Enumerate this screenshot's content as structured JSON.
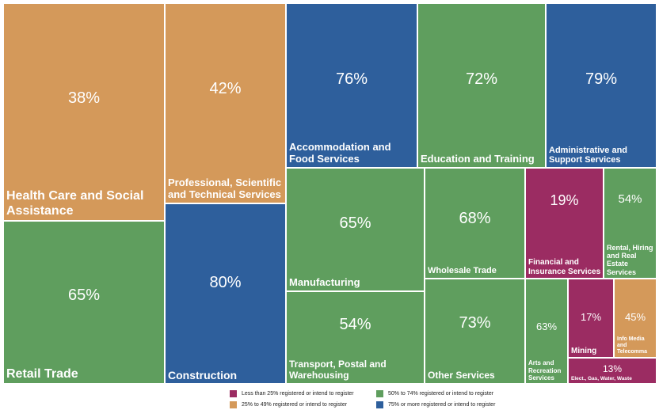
{
  "chart_data": {
    "type": "treemap",
    "categories": [
      "Health Care and Social Assistance",
      "Retail Trade",
      "Professional, Scientific and Technical Services",
      "Construction",
      "Accommodation and Food Services",
      "Education and Training",
      "Administrative and Support Services",
      "Manufacturing",
      "Transport, Postal and Warehousing",
      "Wholesale Trade",
      "Other Services",
      "Financial and Insurance Services",
      "Rental, Hiring and Real Estate Services",
      "Arts and Recreation Services",
      "Mining",
      "Info Media and Telecomma",
      "Elect., Gas, Water, Waste"
    ],
    "values": [
      38,
      65,
      42,
      80,
      76,
      72,
      79,
      65,
      54,
      68,
      73,
      19,
      54,
      63,
      17,
      45,
      13
    ],
    "value_labels": [
      "38%",
      "65%",
      "42%",
      "80%",
      "76%",
      "72%",
      "79%",
      "65%",
      "54%",
      "68%",
      "73%",
      "19%",
      "54%",
      "63%",
      "17%",
      "45%",
      "13%"
    ],
    "colors": [
      "#d4995a",
      "#5f9e5e",
      "#d4995a",
      "#2e5f9c",
      "#2e5f9c",
      "#5f9e5e",
      "#2e5f9c",
      "#5f9e5e",
      "#5f9e5e",
      "#5f9e5e",
      "#5f9e5e",
      "#9b2c62",
      "#5f9e5e",
      "#5f9e5e",
      "#9b2c62",
      "#d4995a",
      "#9b2c62"
    ],
    "legend": [
      {
        "label": "Less than 25% registered or intend to register",
        "color": "#9b2c62"
      },
      {
        "label": "25% to 49% registered or intend to register",
        "color": "#d4995a"
      },
      {
        "label": "50% to 74% registered or intend to register",
        "color": "#5f9e5e"
      },
      {
        "label": "75% or more registered or intend to register",
        "color": "#2e5f9c"
      }
    ]
  }
}
